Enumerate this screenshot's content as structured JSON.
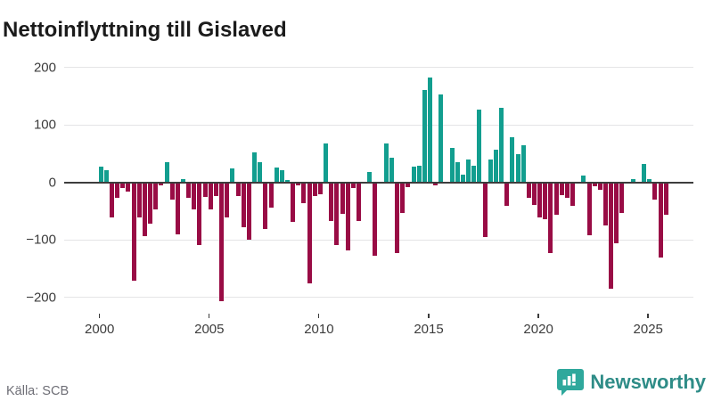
{
  "title": "Nettoinflyttning till Gislaved",
  "source": "Källa: SCB",
  "branding": {
    "name": "Newsworthy",
    "icon": "newsworthy-bar-chart-bubble-icon"
  },
  "colors": {
    "positive": "#129e8f",
    "negative": "#990c45",
    "zero_line": "#3d3d3d",
    "gridline": "#e4e4e6",
    "axis_text": "#3c3c3c",
    "title_text": "#1b1b1b",
    "source_text": "#6e6e76",
    "brand_teal": "#2e8c87",
    "brand_icon_bg": "#2fa89c"
  },
  "chart_data": {
    "type": "bar",
    "title": "Nettoinflyttning till Gislaved",
    "frequency": "quarterly",
    "start_period": "2000-Q1",
    "end_period": "2025-Q4",
    "values": [
      26,
      19,
      -59,
      -26,
      -9,
      -15,
      -169,
      -59,
      -92,
      -70,
      -45,
      -3,
      34,
      -29,
      -89,
      4,
      -26,
      -45,
      -107,
      -24,
      -45,
      -22,
      -205,
      -60,
      23,
      -22,
      -76,
      -99,
      51,
      33,
      -80,
      -42,
      25,
      20,
      3,
      -68,
      -4,
      -35,
      -174,
      -23,
      -19,
      67,
      -65,
      -107,
      -53,
      -117,
      -8,
      -65,
      0,
      17,
      -127,
      0,
      66,
      42,
      -122,
      -51,
      -6,
      26,
      28,
      160,
      181,
      -3,
      152,
      0,
      59,
      33,
      12,
      39,
      27,
      126,
      -94,
      38,
      55,
      128,
      -40,
      77,
      47,
      63,
      -25,
      -38,
      -60,
      -63,
      -122,
      -55,
      -21,
      -26,
      -39,
      0,
      11,
      -91,
      -5,
      -11,
      -73,
      -184,
      -104,
      -52,
      0,
      4,
      0,
      31,
      4,
      -29,
      -130,
      -55
    ],
    "xlabel": "",
    "ylabel": "",
    "y_ticks": [
      "200",
      "100",
      "0",
      "−100",
      "−200"
    ],
    "y_tick_values": [
      200,
      100,
      0,
      -100,
      -200
    ],
    "x_ticks": [
      "2000",
      "2005",
      "2010",
      "2015",
      "2020",
      "2025"
    ],
    "x_tick_years": [
      2000,
      2005,
      2010,
      2015,
      2020,
      2025
    ],
    "ylim": [
      -230,
      215
    ],
    "grid": true,
    "legend": false
  }
}
